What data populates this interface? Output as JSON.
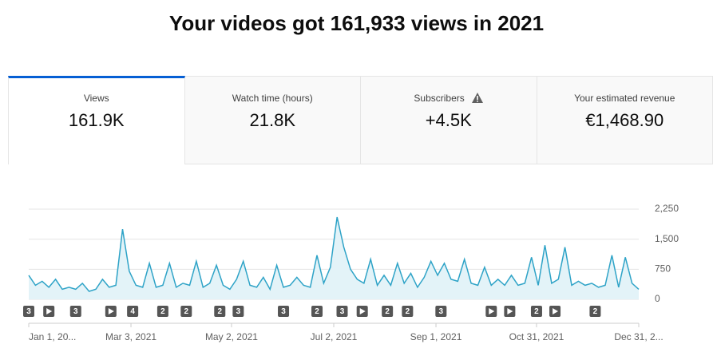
{
  "header": {
    "title": "Your videos got 161,933 views in 2021"
  },
  "tabs": [
    {
      "label": "Views",
      "value": "161.9K"
    },
    {
      "label": "Watch time (hours)",
      "value": "21.8K"
    },
    {
      "label": "Subscribers",
      "value": "+4.5K"
    },
    {
      "label": "Your estimated revenue",
      "value": "€1,468.90"
    }
  ],
  "chart_data": {
    "type": "area",
    "color": "#2ea3c7",
    "x": [
      0,
      4,
      8,
      12,
      16,
      20,
      24,
      28,
      32,
      36,
      40,
      44,
      48,
      52,
      56,
      60,
      64,
      68,
      72,
      76,
      80,
      84,
      88,
      92,
      96,
      100,
      104,
      108,
      112,
      116,
      120,
      124,
      128,
      132,
      136,
      140,
      144,
      148,
      152,
      156,
      160,
      164,
      168,
      172,
      176,
      180,
      184,
      188,
      192,
      196,
      200,
      204,
      208,
      212,
      216,
      220,
      224,
      228,
      232,
      236,
      240,
      244,
      248,
      252,
      256,
      260,
      264,
      268,
      272,
      276,
      280,
      284,
      288,
      292,
      296,
      300,
      304,
      308,
      312,
      316,
      320,
      324,
      328,
      332,
      336,
      340,
      344,
      348,
      352,
      356,
      360,
      364
    ],
    "values": [
      600,
      350,
      450,
      300,
      500,
      250,
      300,
      250,
      400,
      200,
      250,
      500,
      300,
      350,
      1750,
      700,
      350,
      300,
      900,
      300,
      350,
      900,
      300,
      400,
      350,
      950,
      300,
      400,
      850,
      350,
      250,
      500,
      950,
      350,
      300,
      550,
      250,
      850,
      300,
      350,
      550,
      350,
      300,
      1100,
      400,
      800,
      2050,
      1300,
      750,
      500,
      400,
      1000,
      350,
      600,
      350,
      900,
      400,
      650,
      300,
      550,
      950,
      600,
      900,
      500,
      450,
      1000,
      400,
      350,
      800,
      350,
      500,
      350,
      600,
      350,
      400,
      1050,
      350,
      1350,
      400,
      500,
      1300,
      350,
      450,
      350,
      400,
      300,
      350,
      1100,
      300,
      1050,
      400,
      250
    ],
    "xlim": [
      0,
      364
    ],
    "ylim": [
      0,
      2250
    ],
    "yticks": [
      0,
      {
        "value": 750,
        "label": "750"
      },
      {
        "value": 1500,
        "label": "1,500"
      },
      {
        "value": 2250,
        "label": "2,250"
      }
    ],
    "xticks": [
      {
        "value": 0,
        "label": "Jan 1, 20..."
      },
      {
        "value": 61,
        "label": "Mar 3, 2021"
      },
      {
        "value": 121,
        "label": "May 2, 2021"
      },
      {
        "value": 182,
        "label": "Jul 2, 2021"
      },
      {
        "value": 243,
        "label": "Sep 1, 2021"
      },
      {
        "value": 303,
        "label": "Oct 31, 2021"
      },
      {
        "value": 364,
        "label": "Dec 31, 2..."
      }
    ],
    "grid": true,
    "markers": [
      {
        "x": 0,
        "count": 3
      },
      {
        "x": 12
      },
      {
        "x": 28,
        "count": 3
      },
      {
        "x": 49
      },
      {
        "x": 62,
        "count": 4
      },
      {
        "x": 80,
        "count": 2
      },
      {
        "x": 94,
        "count": 2
      },
      {
        "x": 114,
        "count": 2
      },
      {
        "x": 125,
        "count": 3
      },
      {
        "x": 152,
        "count": 3
      },
      {
        "x": 172,
        "count": 2
      },
      {
        "x": 187,
        "count": 3
      },
      {
        "x": 199
      },
      {
        "x": 214,
        "count": 2
      },
      {
        "x": 226,
        "count": 2
      },
      {
        "x": 246,
        "count": 3
      },
      {
        "x": 276
      },
      {
        "x": 287
      },
      {
        "x": 303,
        "count": 2
      },
      {
        "x": 314
      },
      {
        "x": 338,
        "count": 2
      }
    ]
  }
}
